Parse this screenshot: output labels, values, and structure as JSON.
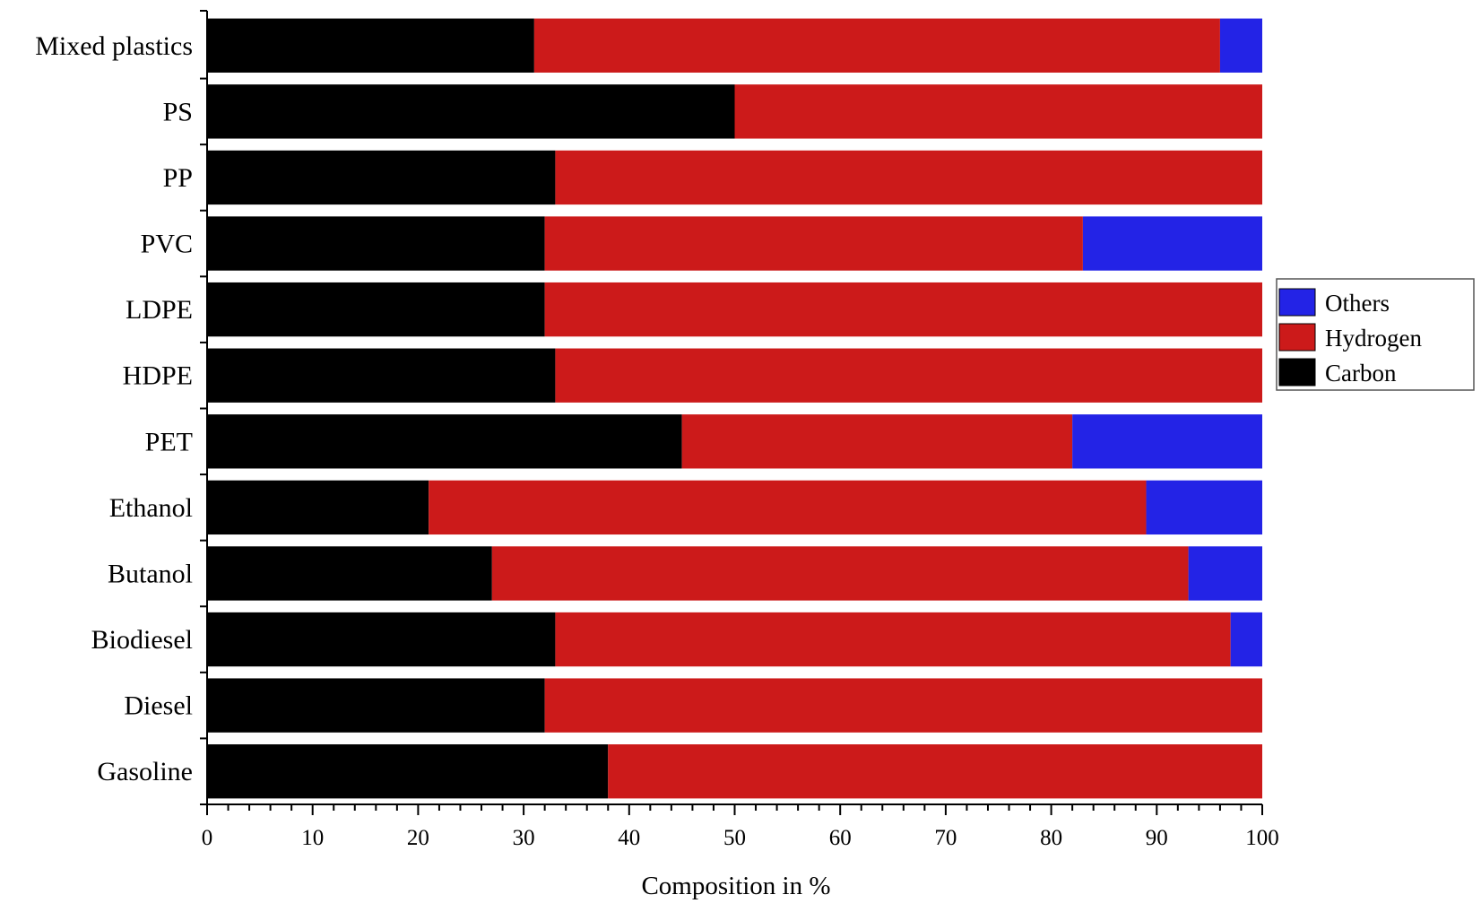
{
  "chart_data": {
    "type": "bar",
    "orientation": "horizontal",
    "stacked": true,
    "categories": [
      "Mixed plastics",
      "PS",
      "PP",
      "PVC",
      "LDPE",
      "HDPE",
      "PET",
      "Ethanol",
      "Butanol",
      "Biodiesel",
      "Diesel",
      "Gasoline"
    ],
    "series": [
      {
        "name": "Carbon",
        "color": "#000000",
        "values": [
          31,
          50,
          33,
          32,
          32,
          33,
          45,
          21,
          27,
          33,
          32,
          38
        ]
      },
      {
        "name": "Hydrogen",
        "color": "#cc1a1a",
        "values": [
          65,
          50,
          67,
          51,
          68,
          67,
          37,
          68,
          66,
          64,
          68,
          62
        ]
      },
      {
        "name": "Others",
        "color": "#2323e6",
        "values": [
          4,
          0,
          0,
          17,
          0,
          0,
          18,
          11,
          7,
          3,
          0,
          0
        ]
      }
    ],
    "legend_order": [
      "Others",
      "Hydrogen",
      "Carbon"
    ],
    "legend_position": "right",
    "xlabel": "Composition in %",
    "ylabel": "",
    "xlim": [
      0,
      100
    ],
    "xticks": [
      "0",
      "10",
      "20",
      "30",
      "40",
      "50",
      "60",
      "70",
      "80",
      "90",
      "100"
    ],
    "grid": false
  }
}
